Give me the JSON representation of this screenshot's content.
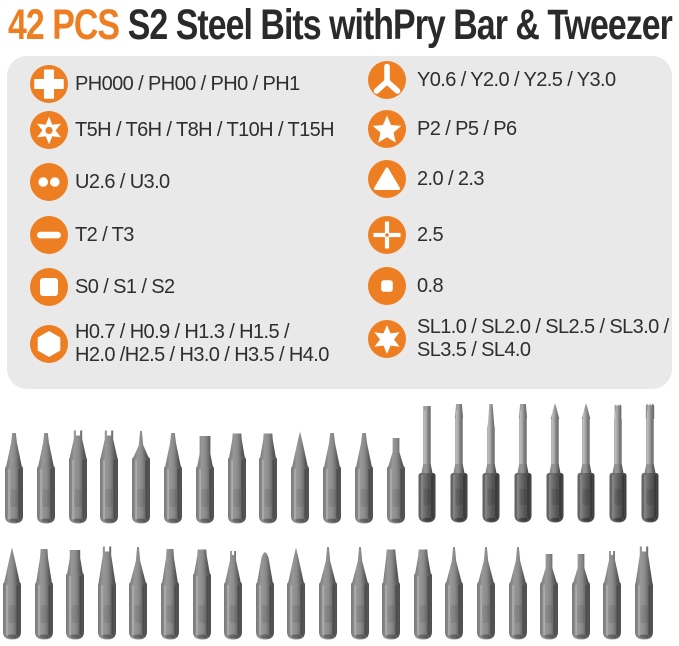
{
  "title": {
    "count": "42 PCS",
    "rest": "S2 Steel Bits withPry Bar & Tweezer"
  },
  "colors": {
    "accent": "#EE7E22",
    "panel": "#E9E9E9",
    "title_dark": "#2A2A2A",
    "spec_text": "#2E2E2E"
  },
  "specs": {
    "left": [
      {
        "icon": "phillips-icon",
        "label": "PH000 / PH00 / PH0 / PH1"
      },
      {
        "icon": "torx-icon",
        "label": "T5H / T6H / T8H / T10H / T15H"
      },
      {
        "icon": "u-type-icon",
        "label": "U2.6 / U3.0"
      },
      {
        "icon": "slot-icon",
        "label": "T2 / T3"
      },
      {
        "icon": "square-icon",
        "label": "S0 / S1 / S2"
      },
      {
        "icon": "hex-icon",
        "label": "H0.7 / H0.9 / H1.3 / H1.5 /\nH2.0 /H2.5 / H3.0 / H3.5 / H4.0"
      }
    ],
    "right": [
      {
        "icon": "y-type-icon",
        "label": "Y0.6 / Y2.0 / Y2.5 / Y3.0"
      },
      {
        "icon": "pentalobe-icon",
        "label": "P2 / P5 / P6"
      },
      {
        "icon": "triangle-icon",
        "label": "2.0 / 2.3"
      },
      {
        "icon": "cross-icon",
        "label": "2.5"
      },
      {
        "icon": "square-dot-icon",
        "label": "0.8"
      },
      {
        "icon": "star-icon",
        "label": "SL1.0 / SL2.0 / SL2.5 / SL3.0 /\nSL3.5 / SL4.0"
      }
    ]
  },
  "bits": {
    "row1": [
      {
        "tip": "slim"
      },
      {
        "tip": "slim"
      },
      {
        "tip": "fork",
        "tall": true
      },
      {
        "tip": "fork",
        "tall": true
      },
      {
        "tip": "needle",
        "tall": true
      },
      {
        "tip": "slim"
      },
      {
        "tip": "hexflat"
      },
      {
        "tip": "chisel",
        "tall": true
      },
      {
        "tip": "chisel",
        "tall": true
      },
      {
        "tip": "point"
      },
      {
        "tip": "slim"
      },
      {
        "tip": "slim"
      },
      {
        "tip": "stub"
      },
      {
        "tip": "stubflat",
        "long": true
      },
      {
        "tip": "flat",
        "long": true
      },
      {
        "tip": "needleflat",
        "long": true
      },
      {
        "tip": "flat",
        "long": true
      },
      {
        "tip": "cross",
        "long": true
      },
      {
        "tip": "cross",
        "long": true
      },
      {
        "tip": "torx",
        "long": true
      },
      {
        "tip": "torxwide",
        "long": true
      }
    ],
    "row2": [
      {
        "tip": "point"
      },
      {
        "tip": "flat"
      },
      {
        "tip": "flatwide",
        "tall": true
      },
      {
        "tip": "fork"
      },
      {
        "tip": "needle"
      },
      {
        "tip": "flat"
      },
      {
        "tip": "chisel",
        "tall": true
      },
      {
        "tip": "forksmall"
      },
      {
        "tip": "dome"
      },
      {
        "tip": "point"
      },
      {
        "tip": "needle"
      },
      {
        "tip": "needle"
      },
      {
        "tip": "chisel"
      },
      {
        "tip": "chisel",
        "tall": true
      },
      {
        "tip": "needle"
      },
      {
        "tip": "needle"
      },
      {
        "tip": "needle"
      },
      {
        "tip": "stub"
      },
      {
        "tip": "stub"
      },
      {
        "tip": "forksmall"
      },
      {
        "tip": "fork"
      }
    ]
  }
}
